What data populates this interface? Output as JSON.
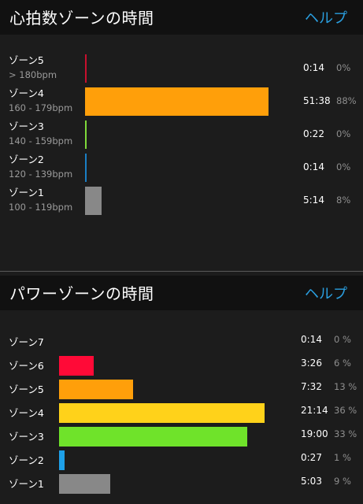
{
  "heart": {
    "title": "心拍数ゾーンの時間",
    "help": "ヘルプ",
    "zones": [
      {
        "name": "ゾーン5",
        "range": "> 180bpm",
        "time": "0:14",
        "pct": "0%",
        "value": 0.3,
        "color": "#c8102e"
      },
      {
        "name": "ゾーン4",
        "range": "160 - 179bpm",
        "time": "51:38",
        "pct": "88%",
        "value": 88,
        "color": "#ff9f0a"
      },
      {
        "name": "ゾーン3",
        "range": "140 - 159bpm",
        "time": "0:22",
        "pct": "0%",
        "value": 0.5,
        "color": "#7fd93a"
      },
      {
        "name": "ゾーン2",
        "range": "120 - 139bpm",
        "time": "0:14",
        "pct": "0%",
        "value": 0.3,
        "color": "#1a7fc4"
      },
      {
        "name": "ゾーン1",
        "range": "100 - 119bpm",
        "time": "5:14",
        "pct": "8%",
        "value": 8,
        "color": "#888888"
      }
    ]
  },
  "power": {
    "title": "パワーゾーンの時間",
    "help": "ヘルプ",
    "zones": [
      {
        "name": "ゾーン7",
        "time": "0:14",
        "pct": "0 %",
        "value": 0,
        "color": "#c8102e"
      },
      {
        "name": "ゾーン6",
        "time": "3:26",
        "pct": "6 %",
        "value": 6,
        "color": "#ff0a37"
      },
      {
        "name": "ゾーン5",
        "time": "7:32",
        "pct": "13 %",
        "value": 13,
        "color": "#ff9f0a"
      },
      {
        "name": "ゾーン4",
        "time": "21:14",
        "pct": "36 %",
        "value": 36,
        "color": "#ffd21a"
      },
      {
        "name": "ゾーン3",
        "time": "19:00",
        "pct": "33 %",
        "value": 33,
        "color": "#6fe32a"
      },
      {
        "name": "ゾーン2",
        "time": "0:27",
        "pct": "1 %",
        "value": 1,
        "color": "#1ea0e8"
      },
      {
        "name": "ゾーン1",
        "time": "5:03",
        "pct": "9 %",
        "value": 9,
        "color": "#888888"
      }
    ]
  }
}
